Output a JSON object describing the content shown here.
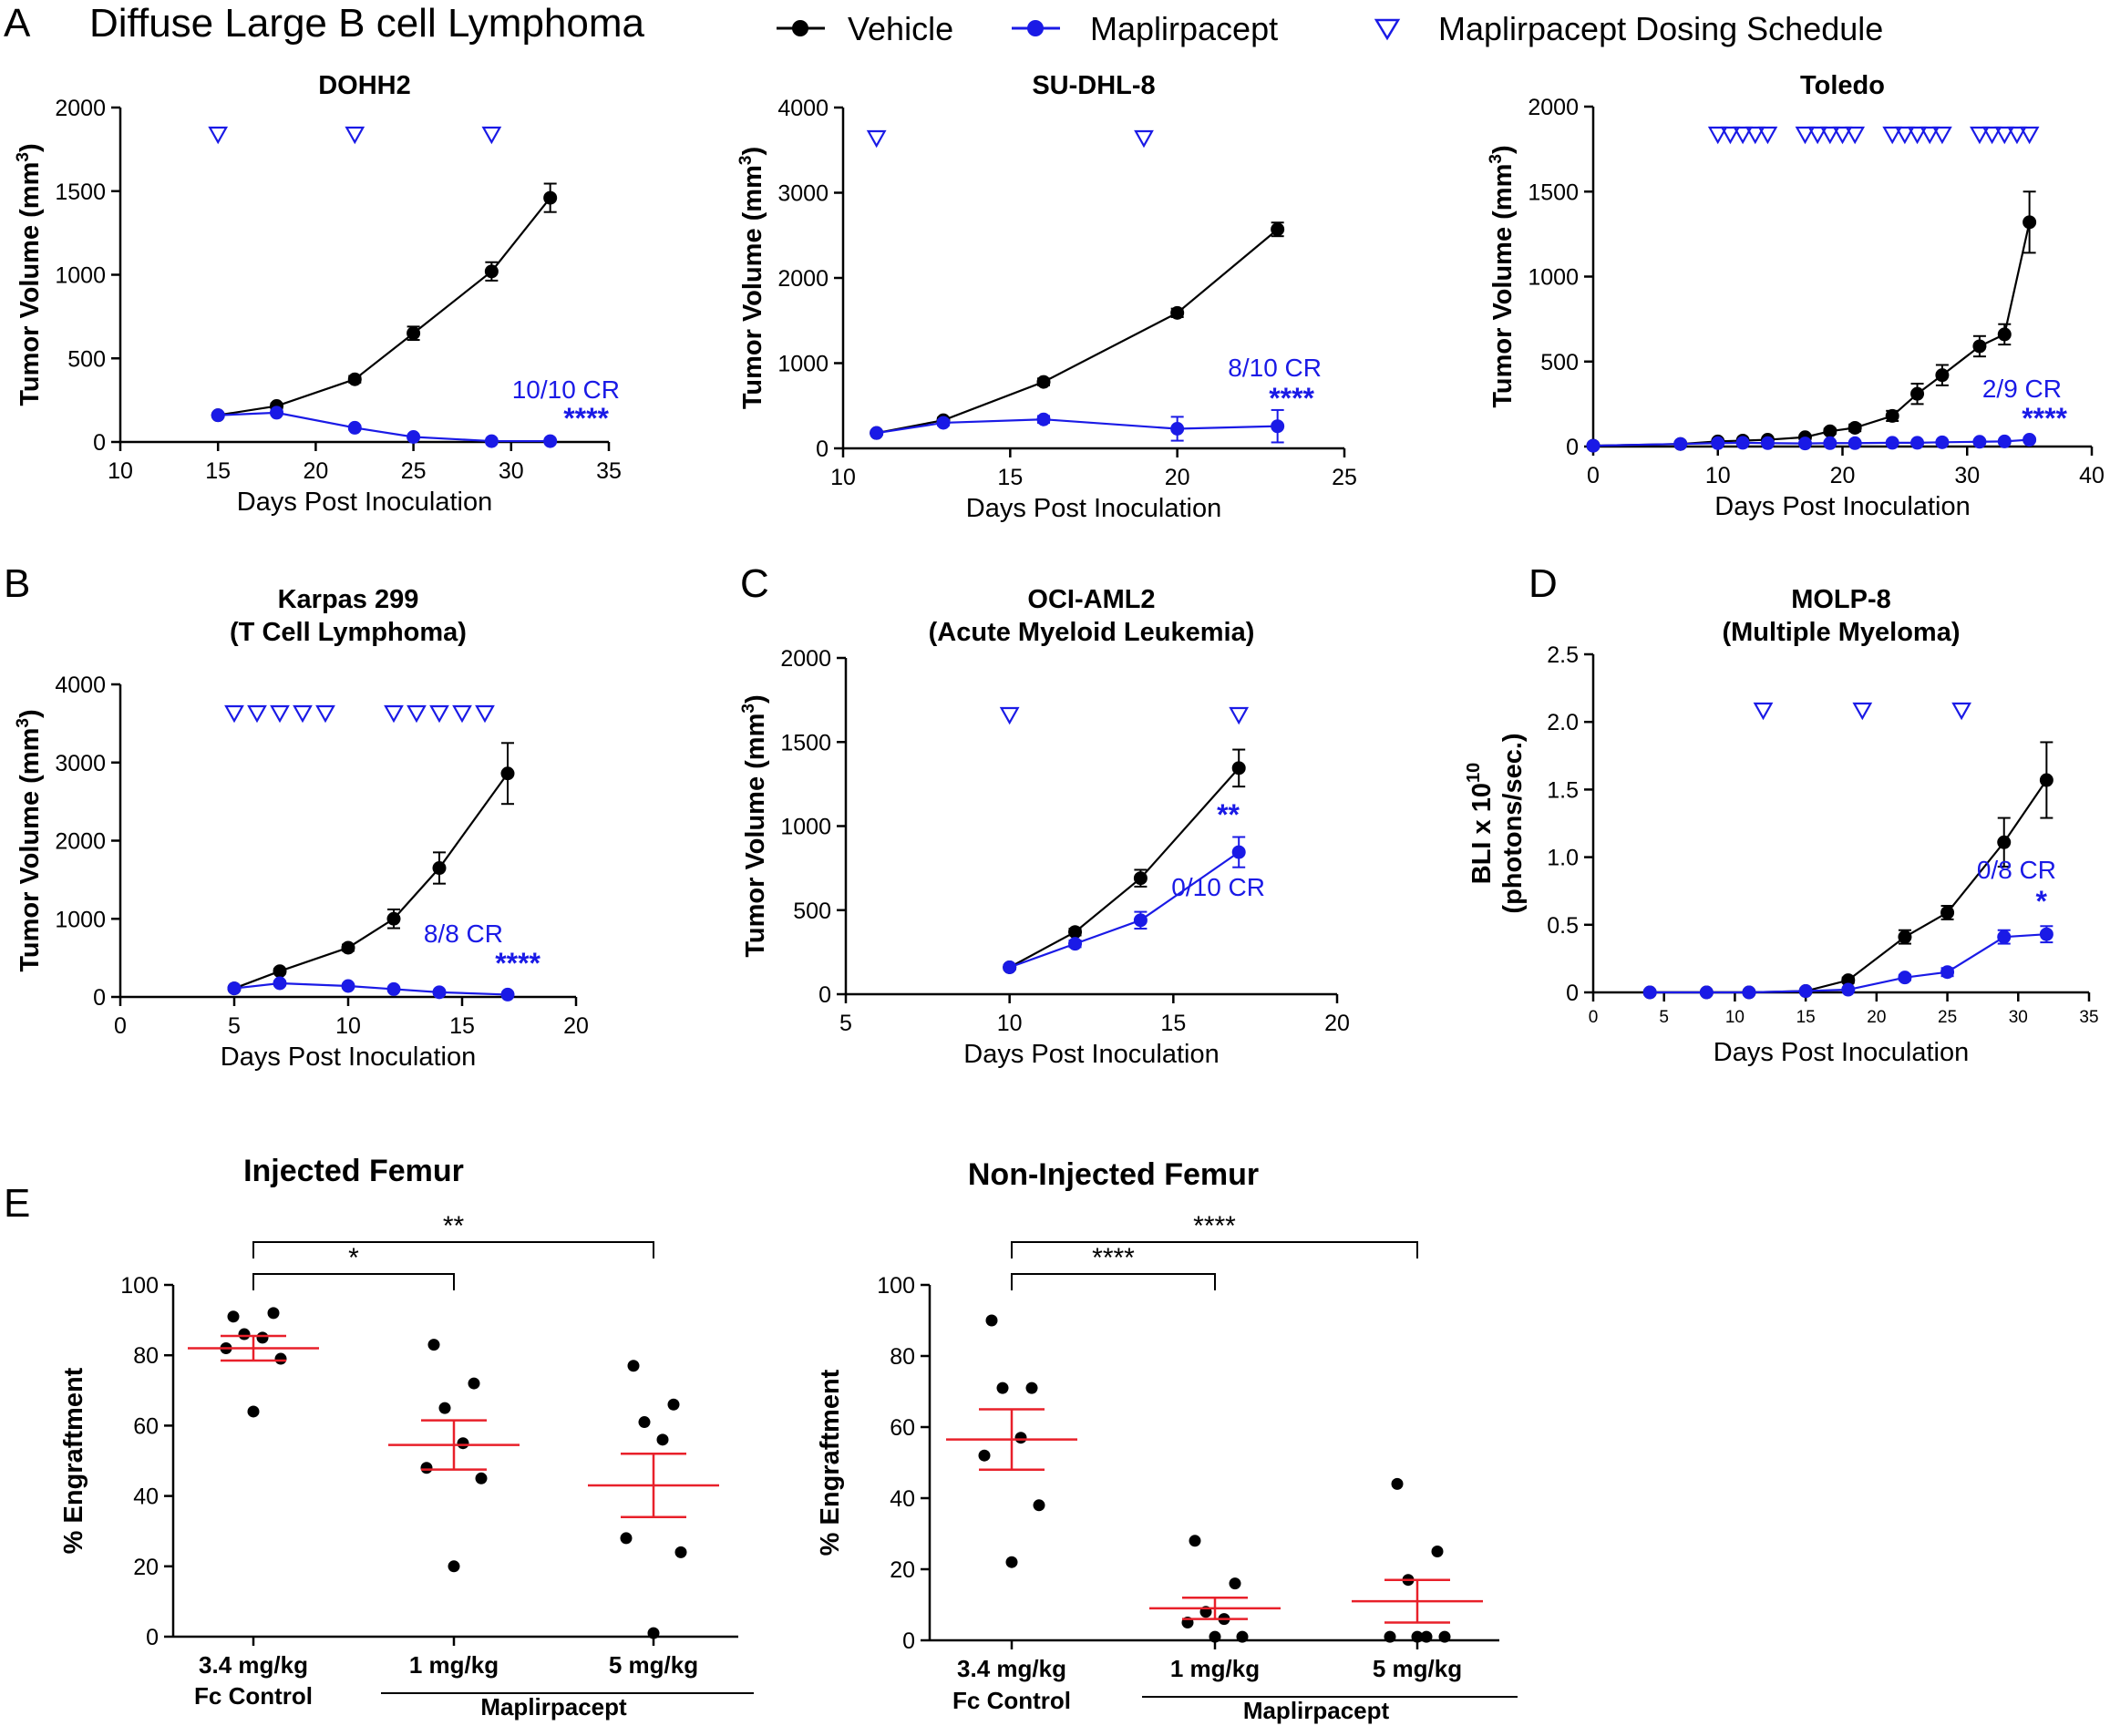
{
  "figure": {
    "panel_a_letter": "A",
    "panel_a_title": "Diffuse Large B cell Lymphoma",
    "legend": {
      "vehicle": "Vehicle",
      "drug": "Maplirpacept",
      "dosing": "Maplirpacept Dosing Schedule"
    },
    "colors": {
      "vehicle": "#000000",
      "drug": "#1a1ae6",
      "mean_bar": "#e8202a"
    }
  },
  "chart_data": [
    {
      "id": "dohh2",
      "type": "line",
      "letter": "",
      "title": [
        "DOHH2"
      ],
      "xlabel": "Days Post Inoculation",
      "ylabel": "Tumor Volume (mm3)",
      "xlim": [
        10,
        35
      ],
      "ylim": [
        0,
        2000
      ],
      "xticks": [
        10,
        15,
        20,
        25,
        30,
        35
      ],
      "yticks": [
        0,
        500,
        1000,
        1500,
        2000
      ],
      "dosing_days": [
        15,
        22,
        29
      ],
      "series": [
        {
          "name": "Vehicle",
          "x": [
            15,
            18,
            22,
            25,
            29,
            32
          ],
          "y": [
            160,
            215,
            375,
            650,
            1020,
            1460
          ],
          "err": [
            10,
            15,
            20,
            40,
            55,
            85
          ]
        },
        {
          "name": "Maplirpacept",
          "x": [
            15,
            18,
            22,
            25,
            29,
            32
          ],
          "y": [
            160,
            175,
            85,
            30,
            5,
            5
          ],
          "err": [
            10,
            12,
            10,
            5,
            2,
            2
          ]
        }
      ],
      "annotations": {
        "cr": "10/10 CR",
        "stars": "****"
      }
    },
    {
      "id": "sudhl8",
      "type": "line",
      "letter": "",
      "title": [
        "SU-DHL-8"
      ],
      "xlabel": "Days Post Inoculation",
      "ylabel": "Tumor Volume (mm3)",
      "xlim": [
        10,
        25
      ],
      "ylim": [
        0,
        4000
      ],
      "xticks": [
        10,
        15,
        20,
        25
      ],
      "yticks": [
        0,
        1000,
        2000,
        3000,
        4000
      ],
      "dosing_days": [
        11,
        19
      ],
      "series": [
        {
          "name": "Vehicle",
          "x": [
            11,
            13,
            16,
            20,
            23
          ],
          "y": [
            180,
            330,
            780,
            1590,
            2570
          ],
          "err": [
            20,
            30,
            40,
            50,
            80
          ]
        },
        {
          "name": "Maplirpacept",
          "x": [
            11,
            13,
            16,
            20,
            23
          ],
          "y": [
            180,
            300,
            340,
            230,
            260
          ],
          "err": [
            20,
            30,
            40,
            140,
            190
          ]
        }
      ],
      "annotations": {
        "cr": "8/10 CR",
        "stars": "****"
      }
    },
    {
      "id": "toledo",
      "type": "line",
      "letter": "",
      "title": [
        "Toledo"
      ],
      "xlabel": "Days Post Inoculation",
      "ylabel": "Tumor Volume (mm3)",
      "xlim": [
        0,
        40
      ],
      "ylim": [
        0,
        2000
      ],
      "xticks": [
        0,
        10,
        20,
        30,
        40
      ],
      "yticks": [
        0,
        500,
        1000,
        1500,
        2000
      ],
      "dosing_days": [
        10,
        11,
        12,
        13,
        14,
        17,
        18,
        19,
        20,
        21,
        24,
        25,
        26,
        27,
        28,
        31,
        32,
        33,
        34,
        35
      ],
      "series": [
        {
          "name": "Vehicle",
          "x": [
            0,
            7,
            10,
            12,
            14,
            17,
            19,
            21,
            24,
            26,
            28,
            31,
            33,
            35
          ],
          "y": [
            5,
            15,
            30,
            35,
            40,
            55,
            90,
            110,
            180,
            310,
            420,
            590,
            660,
            1320
          ],
          "err": [
            2,
            5,
            8,
            8,
            10,
            12,
            15,
            20,
            30,
            60,
            60,
            60,
            60,
            180
          ]
        },
        {
          "name": "Maplirpacept",
          "x": [
            0,
            7,
            10,
            12,
            14,
            17,
            19,
            21,
            24,
            26,
            28,
            31,
            33,
            35
          ],
          "y": [
            5,
            15,
            20,
            22,
            20,
            18,
            20,
            20,
            22,
            22,
            25,
            28,
            30,
            40
          ],
          "err": [
            2,
            4,
            5,
            5,
            5,
            5,
            5,
            5,
            5,
            5,
            5,
            6,
            6,
            10
          ]
        }
      ],
      "annotations": {
        "cr": "2/9 CR",
        "stars": "****"
      }
    },
    {
      "id": "karpas",
      "type": "line",
      "letter": "B",
      "title": [
        "Karpas 299",
        "(T Cell Lymphoma)"
      ],
      "xlabel": "Days Post Inoculation",
      "ylabel": "Tumor Volume (mm3)",
      "xlim": [
        0,
        20
      ],
      "ylim": [
        0,
        4000
      ],
      "xticks": [
        0,
        5,
        10,
        15,
        20
      ],
      "yticks": [
        0,
        1000,
        2000,
        3000,
        4000
      ],
      "dosing_days": [
        5,
        6,
        7,
        8,
        9,
        12,
        13,
        14,
        15,
        16
      ],
      "series": [
        {
          "name": "Vehicle",
          "x": [
            5,
            7,
            10,
            12,
            14,
            17
          ],
          "y": [
            110,
            330,
            630,
            1000,
            1650,
            2860
          ],
          "err": [
            15,
            30,
            40,
            120,
            200,
            390
          ]
        },
        {
          "name": "Maplirpacept",
          "x": [
            5,
            7,
            10,
            12,
            14,
            17
          ],
          "y": [
            110,
            175,
            140,
            100,
            60,
            30
          ],
          "err": [
            15,
            25,
            20,
            15,
            10,
            8
          ]
        }
      ],
      "annotations": {
        "cr": "8/8 CR",
        "stars": "****"
      }
    },
    {
      "id": "ociaml2",
      "type": "line",
      "letter": "C",
      "title": [
        "OCI-AML2",
        "(Acute Myeloid Leukemia)"
      ],
      "xlabel": "Days Post Inoculation",
      "ylabel": "Tumor Volume (mm3)",
      "xlim": [
        5,
        20
      ],
      "ylim": [
        0,
        2000
      ],
      "xticks": [
        5,
        10,
        15,
        20
      ],
      "yticks": [
        0,
        500,
        1000,
        1500,
        2000
      ],
      "dosing_days": [
        10,
        17
      ],
      "series": [
        {
          "name": "Vehicle",
          "x": [
            10,
            12,
            14,
            17
          ],
          "y": [
            160,
            370,
            690,
            1345
          ],
          "err": [
            12,
            20,
            50,
            110
          ]
        },
        {
          "name": "Maplirpacept",
          "x": [
            10,
            12,
            14,
            17
          ],
          "y": [
            160,
            300,
            440,
            845
          ],
          "err": [
            12,
            20,
            50,
            90
          ]
        }
      ],
      "annotations": {
        "cr": "0/10 CR",
        "stars": "**"
      }
    },
    {
      "id": "molp8",
      "type": "line",
      "letter": "D",
      "title": [
        "MOLP-8",
        "(Multiple Myeloma)"
      ],
      "xlabel": "Days Post Inoculation",
      "ylabel": "BLI x 1010 (photons/sec.)",
      "ylabel_line1": "BLI x 10",
      "ylabel_exp": "10",
      "ylabel_line2": "(photons/sec.)",
      "xlim": [
        0,
        35
      ],
      "ylim": [
        0,
        2.5
      ],
      "xticks": [
        0,
        5,
        10,
        15,
        20,
        25,
        30,
        35
      ],
      "yticks": [
        "0",
        "0.5",
        "1.0",
        "1.5",
        "2.0",
        "2.5"
      ],
      "dosing_days": [
        12,
        19,
        26
      ],
      "series": [
        {
          "name": "Vehicle",
          "x": [
            4,
            8,
            11,
            15,
            18,
            22,
            25,
            29,
            32
          ],
          "y": [
            0,
            0,
            0,
            0.01,
            0.09,
            0.41,
            0.59,
            1.11,
            1.57
          ],
          "err": [
            0,
            0,
            0,
            0,
            0.02,
            0.05,
            0.05,
            0.18,
            0.28
          ]
        },
        {
          "name": "Maplirpacept",
          "x": [
            4,
            8,
            11,
            15,
            18,
            22,
            25,
            29,
            32
          ],
          "y": [
            0,
            0,
            0,
            0.01,
            0.02,
            0.11,
            0.15,
            0.41,
            0.43
          ],
          "err": [
            0,
            0,
            0,
            0,
            0.01,
            0.02,
            0.03,
            0.05,
            0.06
          ]
        }
      ],
      "annotations": {
        "cr": "0/8 CR",
        "stars": "*"
      }
    },
    {
      "id": "injected",
      "type": "scatter",
      "letter": "E",
      "title": [
        "Injected Femur"
      ],
      "ylabel": "% Engraftment",
      "ylim": [
        0,
        100
      ],
      "yticks": [
        0,
        20,
        40,
        60,
        80,
        100
      ],
      "categories": [
        "3.4 mg/kg",
        "1 mg/kg",
        "5 mg/kg"
      ],
      "group_labels": {
        "control": "Fc Control",
        "treated": "Maplirpacept"
      },
      "points": [
        [
          91,
          92,
          86,
          85,
          82,
          79,
          64
        ],
        [
          83,
          72,
          65,
          55,
          48,
          45,
          20
        ],
        [
          77,
          66,
          61,
          56,
          28,
          24,
          1
        ]
      ],
      "means": [
        82,
        54.5,
        43
      ],
      "sem": [
        3.5,
        7,
        9
      ],
      "brackets": [
        {
          "from": 0,
          "to": 1,
          "label": "*"
        },
        {
          "from": 0,
          "to": 2,
          "label": "**"
        }
      ]
    },
    {
      "id": "noninjected",
      "type": "scatter",
      "letter": "",
      "title": [
        "Non-Injected Femur"
      ],
      "ylabel": "% Engraftment",
      "ylim": [
        0,
        100
      ],
      "yticks": [
        0,
        20,
        40,
        60,
        80,
        100
      ],
      "categories": [
        "3.4 mg/kg",
        "1 mg/kg",
        "5 mg/kg"
      ],
      "group_labels": {
        "control": "Fc Control",
        "treated": "Maplirpacept"
      },
      "points": [
        [
          90,
          71,
          71,
          57,
          52,
          38,
          22
        ],
        [
          28,
          16,
          8,
          6,
          5,
          1,
          1
        ],
        [
          44,
          25,
          17,
          1,
          1,
          1,
          1
        ]
      ],
      "means": [
        56.5,
        9,
        11
      ],
      "sem": [
        8.5,
        3,
        6
      ],
      "brackets": [
        {
          "from": 0,
          "to": 1,
          "label": "****"
        },
        {
          "from": 0,
          "to": 2,
          "label": "****"
        }
      ]
    }
  ]
}
